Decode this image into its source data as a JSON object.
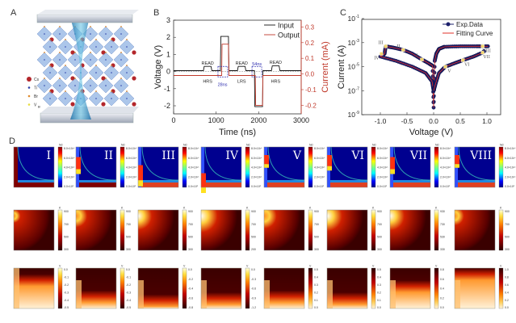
{
  "panels": {
    "a": "A",
    "b": "B",
    "c": "C",
    "d": "D"
  },
  "panel_a": {
    "legend": [
      {
        "label": "Cs",
        "color": "#b3262b"
      },
      {
        "label": "Ti",
        "color": "#2b3fa8"
      },
      {
        "label": "Br",
        "color": "#e08a2c"
      },
      {
        "label": "V",
        "sub": "Br",
        "color": "#e6dc3a"
      }
    ]
  },
  "chart_data": [
    {
      "type": "line",
      "panel": "B",
      "xlabel": "Time (ns)",
      "ylabel": "Voltage (V)",
      "y2label": "Current (mA)",
      "xlim": [
        0,
        3000
      ],
      "ylim": [
        -2.5,
        3
      ],
      "y2lim": [
        -0.25,
        0.35
      ],
      "xticks": [
        "0",
        "1000",
        "2000",
        "3000"
      ],
      "yticks": [
        "3",
        "2",
        "1",
        "0",
        "-1",
        "-2"
      ],
      "y2ticks": [
        "0.3",
        "0.2",
        "0.1",
        "0.0",
        "-0.1",
        "-0.2"
      ],
      "legend": {
        "position": "top-right",
        "entries": [
          "Input",
          "Output"
        ]
      },
      "series": [
        {
          "name": "Input",
          "color": "#111111",
          "axis": "left",
          "points": [
            [
              0,
              0.05
            ],
            [
              700,
              0.05
            ],
            [
              720,
              0.3
            ],
            [
              880,
              0.3
            ],
            [
              900,
              0.05
            ],
            [
              1100,
              0.05
            ],
            [
              1110,
              2.05
            ],
            [
              1290,
              2.05
            ],
            [
              1300,
              0.05
            ],
            [
              1500,
              0.05
            ],
            [
              1520,
              0.3
            ],
            [
              1680,
              0.3
            ],
            [
              1700,
              0.05
            ],
            [
              1900,
              0.05
            ],
            [
              1910,
              -2.05
            ],
            [
              2090,
              -2.05
            ],
            [
              2100,
              0.05
            ],
            [
              2300,
              0.05
            ],
            [
              2320,
              0.33
            ],
            [
              2480,
              0.33
            ],
            [
              2500,
              0.05
            ],
            [
              3000,
              0.05
            ]
          ]
        },
        {
          "name": "Output",
          "color": "#c0392b",
          "axis": "right",
          "points": [
            [
              0,
              -0.01
            ],
            [
              1130,
              -0.01
            ],
            [
              1140,
              0.19
            ],
            [
              1290,
              0.19
            ],
            [
              1300,
              -0.01
            ],
            [
              1920,
              -0.01
            ],
            [
              1930,
              -0.2
            ],
            [
              2090,
              -0.2
            ],
            [
              2100,
              -0.01
            ],
            [
              3000,
              -0.01
            ]
          ]
        }
      ],
      "annotations": [
        {
          "text": "READ",
          "x": 800,
          "y": 0.5,
          "color": "#222"
        },
        {
          "text": "HRS",
          "x": 800,
          "y": -0.55,
          "color": "#222"
        },
        {
          "text": "28ns",
          "x": 1150,
          "y": -0.75,
          "color": "#3030b0"
        },
        {
          "text": "READ",
          "x": 1600,
          "y": 0.5,
          "color": "#222"
        },
        {
          "text": "LRS",
          "x": 1600,
          "y": -0.55,
          "color": "#222"
        },
        {
          "text": "54ns",
          "x": 1960,
          "y": 0.45,
          "color": "#3030b0"
        },
        {
          "text": "READ",
          "x": 2400,
          "y": 0.55,
          "color": "#222"
        },
        {
          "text": "HRS",
          "x": 2400,
          "y": -0.55,
          "color": "#222"
        }
      ]
    },
    {
      "type": "scatter",
      "panel": "C",
      "xlabel": "Voltage (V)",
      "ylabel": "Current (A)",
      "xlim": [
        -1.35,
        1.25
      ],
      "ylim": [
        1e-09,
        0.1
      ],
      "yscale": "log",
      "xticks": [
        "-1.0",
        "-0.5",
        "0.0",
        "0.5",
        "1.0"
      ],
      "yticks": [
        {
          "base": "10",
          "exp": "-1"
        },
        {
          "base": "10",
          "exp": "-3"
        },
        {
          "base": "10",
          "exp": "-5"
        },
        {
          "base": "10",
          "exp": "-7"
        },
        {
          "base": "10",
          "exp": "-9"
        }
      ],
      "legend": {
        "position": "top-right",
        "entries": [
          "Exp.Data",
          "Fitting Curve"
        ]
      },
      "series": [
        {
          "name": "Exp.Data",
          "color": "#1b1f6b",
          "branches": [
            [
              [
                1.02,
                0.0005
              ],
              [
                0.8,
                0.0005
              ],
              [
                0.5,
                0.0005
              ],
              [
                0.2,
                0.00045
              ],
              [
                0.1,
                0.0003
              ],
              [
                0.05,
                0.00012
              ],
              [
                0.02,
                3e-05
              ],
              [
                0.0,
                4e-09
              ]
            ],
            [
              [
                0.0,
                4e-09
              ],
              [
                -0.02,
                1.2e-05
              ],
              [
                -0.1,
                2e-05
              ],
              [
                -0.22,
                4e-05
              ],
              [
                -0.4,
                0.00012
              ],
              [
                -0.57,
                0.00025
              ],
              [
                -0.75,
                0.00038
              ],
              [
                -0.9,
                0.0005
              ]
            ],
            [
              [
                -0.9,
                0.0005
              ],
              [
                -0.92,
                0.00012
              ],
              [
                -1.0,
                7e-05
              ],
              [
                -0.7,
                3e-05
              ],
              [
                -0.4,
                1e-05
              ],
              [
                -0.15,
                3e-06
              ],
              [
                -0.03,
                6e-07
              ],
              [
                0.0,
                1e-07
              ]
            ],
            [
              [
                0.0,
                1e-07
              ],
              [
                0.03,
                3e-07
              ],
              [
                0.1,
                3e-06
              ],
              [
                0.22,
                1e-05
              ],
              [
                0.4,
                2e-05
              ],
              [
                0.55,
                3.5e-05
              ],
              [
                0.75,
                7e-05
              ],
              [
                0.92,
                0.00015
              ],
              [
                0.95,
                0.0002
              ]
            ]
          ]
        },
        {
          "name": "Fitting Curve",
          "color": "#e0302a"
        }
      ],
      "fit_points": [
        {
          "label": "I",
          "v": -0.22,
          "i": 4e-05
        },
        {
          "label": "II",
          "v": -0.57,
          "i": 0.00025
        },
        {
          "label": "III",
          "v": -0.9,
          "i": 0.0005
        },
        {
          "label": "IV",
          "v": -0.98,
          "i": 0.00012
        },
        {
          "label": "V",
          "v": 0.22,
          "i": 1e-05
        },
        {
          "label": "VI",
          "v": 0.55,
          "i": 3.5e-05
        },
        {
          "label": "VII",
          "v": 0.92,
          "i": 0.00015
        },
        {
          "label": "VIII",
          "v": 0.92,
          "i": 0.0005
        }
      ]
    },
    {
      "type": "heatmap",
      "panel": "D",
      "states": [
        "I",
        "II",
        "III",
        "IV",
        "V",
        "VI",
        "VII",
        "VIII"
      ],
      "rows": [
        {
          "quantity": "Nd",
          "colormap": "jet",
          "ticks": [
            [
              "8.0×10²⁶",
              "6.0×10²⁶",
              "4.0×10²⁶",
              "2.0×10²⁶",
              "0.0×10⁰"
            ],
            [
              "8.0×10²⁶",
              "6.0×10²⁶",
              "4.0×10²⁶",
              "2.0×10²⁶",
              "0.0×10⁰"
            ],
            [
              "8.0×10²⁶",
              "6.0×10²⁶",
              "4.0×10²⁶",
              "2.0×10²⁶",
              "0.0×10⁰"
            ],
            [
              "8.0×10²⁶",
              "6.0×10²⁶",
              "4.0×10²⁶",
              "2.0×10²⁶",
              "0.0×10⁰"
            ],
            [
              "8.0×10²⁶",
              "6.0×10²⁶",
              "4.0×10²⁶",
              "2.0×10²⁶",
              "0.0×10⁰"
            ],
            [
              "8.0×10²⁶",
              "6.0×10²⁶",
              "4.0×10²⁶",
              "2.0×10²⁶",
              "0.0×10⁰"
            ],
            [
              "8.0×10²⁶",
              "6.0×10²⁶",
              "4.0×10²⁶",
              "2.0×10²⁶",
              "0.0×10⁰"
            ],
            [
              "8.0×10²⁶",
              "6.0×10²⁶",
              "4.0×10²⁶",
              "2.0×10²⁶",
              "0.0×10⁰"
            ]
          ]
        },
        {
          "quantity": "K",
          "colormap": "hot",
          "ticks": [
            [
              "900",
              "700",
              "500",
              "300"
            ],
            [
              "900",
              "700",
              "500",
              "300"
            ],
            [
              "900",
              "700",
              "500",
              "300"
            ],
            [
              "900",
              "700",
              "500",
              "200"
            ],
            [
              "900",
              "700",
              "500",
              "300"
            ],
            [
              "900",
              "700",
              "500",
              "300"
            ],
            [
              "930",
              "730",
              "530",
              "330"
            ],
            [
              "900",
              "700",
              "500",
              "300"
            ]
          ]
        },
        {
          "quantity": "V",
          "colormap": "hot",
          "ticks": [
            [
              "0.0",
              "-0.1",
              "-0.2",
              "-0.3",
              "-0.4",
              "-0.5"
            ],
            [
              "0.0",
              "-0.1",
              "-0.2",
              "-0.3",
              "-0.4",
              "-0.5"
            ],
            [
              "0.0",
              "-0.2",
              "-0.4",
              "-0.6",
              "-0.8"
            ],
            [
              "0.0",
              "-0.3",
              "-0.6",
              "-0.9",
              "-1.2"
            ],
            [
              "0.5",
              "0.4",
              "0.3",
              "0.2",
              "0.1",
              "0.0"
            ],
            [
              "0.5",
              "0.4",
              "0.3",
              "0.2",
              "0.1",
              "0.0"
            ],
            [
              "0.8",
              "0.6",
              "0.4",
              "0.2",
              "0.0"
            ],
            [
              "1.0",
              "0.8",
              "0.6",
              "0.4",
              "0.2",
              "0.0"
            ]
          ]
        }
      ]
    }
  ]
}
